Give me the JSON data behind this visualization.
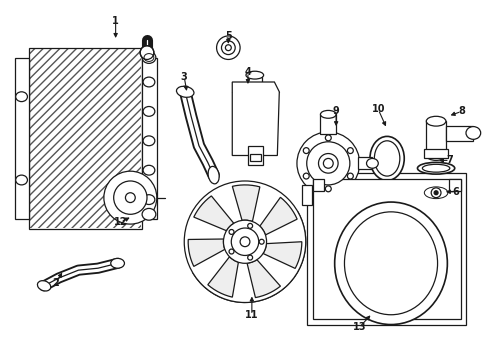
{
  "background_color": "#ffffff",
  "line_color": "#1a1a1a",
  "figsize": [
    4.9,
    3.6
  ],
  "dpi": 100,
  "label_positions": [
    [
      "1",
      113,
      18
    ],
    [
      "2",
      52,
      285
    ],
    [
      "3",
      183,
      75
    ],
    [
      "4",
      248,
      70
    ],
    [
      "5",
      228,
      33
    ],
    [
      "6",
      460,
      192
    ],
    [
      "7",
      454,
      160
    ],
    [
      "8",
      466,
      110
    ],
    [
      "9",
      338,
      110
    ],
    [
      "10",
      381,
      108
    ],
    [
      "11",
      252,
      318
    ],
    [
      "12",
      118,
      223
    ],
    [
      "13",
      362,
      330
    ]
  ],
  "arrows": [
    [
      113,
      18,
      113,
      38
    ],
    [
      52,
      285,
      60,
      272
    ],
    [
      183,
      75,
      186,
      92
    ],
    [
      248,
      70,
      248,
      85
    ],
    [
      228,
      33,
      228,
      44
    ],
    [
      460,
      192,
      447,
      192
    ],
    [
      454,
      160,
      440,
      160
    ],
    [
      466,
      110,
      452,
      115
    ],
    [
      338,
      110,
      338,
      128
    ],
    [
      381,
      108,
      390,
      128
    ],
    [
      252,
      318,
      252,
      296
    ],
    [
      118,
      223,
      130,
      217
    ],
    [
      362,
      330,
      375,
      316
    ]
  ]
}
